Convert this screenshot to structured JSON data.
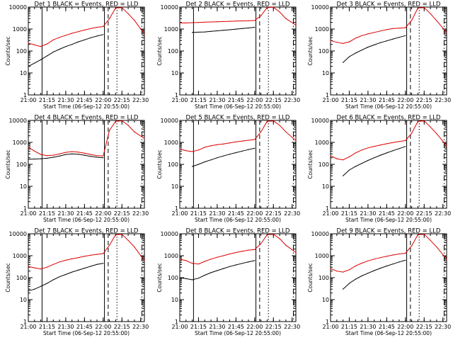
{
  "chart_data": {
    "type": "line",
    "yscale": "log",
    "ylim": [
      1,
      10000
    ],
    "xlim": [
      "21:00",
      "22:33"
    ],
    "ylabel": "Counts/sec",
    "xlabel": "Start Time (06-Sep-12 20:55:00)",
    "x_tick_labels": [
      "21:00",
      "21:15",
      "21:30",
      "21:45",
      "22:00",
      "22:15",
      "22:30"
    ],
    "y_tick_labels": [
      "1",
      "10",
      "100",
      "1000",
      "10000"
    ],
    "series_colors": {
      "events": "#000000",
      "lld": "#dd0000"
    },
    "panels": [
      {
        "title": "Det 1  BLACK = Events, RED = LLD",
        "markers": [
          {
            "t": "21:11",
            "style": "solid"
          },
          {
            "t": "22:01",
            "style": "solid"
          },
          {
            "t": "22:04",
            "style": "dashed"
          },
          {
            "t": "22:11",
            "style": "dotted"
          },
          {
            "t": "22:31",
            "style": "dashdot"
          }
        ],
        "series": [
          {
            "name": "Events",
            "color": "#000000",
            "x": [
              "21:00",
              "21:05",
              "21:10",
              "21:15",
              "21:20",
              "21:25",
              "21:30",
              "21:35",
              "21:40",
              "21:45",
              "21:50",
              "21:55",
              "22:00"
            ],
            "y": [
              20,
              28,
              40,
              60,
              90,
              120,
              160,
              200,
              260,
              320,
              400,
              480,
              560
            ]
          },
          {
            "name": "LLD",
            "color": "#dd0000",
            "x": [
              "21:00",
              "21:05",
              "21:10",
              "21:15",
              "21:20",
              "21:25",
              "21:30",
              "21:35",
              "21:40",
              "21:45",
              "21:50",
              "21:55",
              "22:00",
              "22:05",
              "22:10",
              "22:15",
              "22:20",
              "22:25",
              "22:33"
            ],
            "y": [
              230,
              190,
              160,
              210,
              320,
              420,
              520,
              640,
              760,
              900,
              1050,
              1200,
              1300,
              3000,
              9000,
              9500,
              5000,
              2500,
              600
            ]
          }
        ]
      },
      {
        "title": "Det 2  BLACK = Events, RED = LLD",
        "markers": [
          {
            "t": "21:11",
            "style": "solid"
          },
          {
            "t": "22:01",
            "style": "solid"
          },
          {
            "t": "22:04",
            "style": "dashed"
          },
          {
            "t": "22:11",
            "style": "dotted"
          },
          {
            "t": "22:31",
            "style": "dashdot"
          }
        ],
        "series": [
          {
            "name": "Events",
            "color": "#000000",
            "x": [
              "21:10",
              "21:15",
              "21:20",
              "21:25",
              "21:30",
              "21:35",
              "21:40",
              "21:45",
              "21:50",
              "21:55",
              "22:00"
            ],
            "y": [
              700,
              720,
              740,
              780,
              830,
              880,
              930,
              990,
              1050,
              1120,
              1200
            ]
          },
          {
            "name": "LLD",
            "color": "#dd0000",
            "x": [
              "21:00",
              "21:05",
              "21:10",
              "21:15",
              "21:20",
              "21:25",
              "21:30",
              "21:35",
              "21:40",
              "21:45",
              "21:50",
              "21:55",
              "22:00",
              "22:05",
              "22:10",
              "22:15",
              "22:20",
              "22:25",
              "22:33"
            ],
            "y": [
              1900,
              1900,
              1950,
              2000,
              2050,
              2100,
              2150,
              2200,
              2250,
              2300,
              2350,
              2400,
              2450,
              4000,
              9500,
              9800,
              6000,
              3000,
              1500
            ]
          }
        ]
      },
      {
        "title": "Det 3  BLACK = Events, RED = LLD",
        "markers": [
          {
            "t": "22:01",
            "style": "solid"
          },
          {
            "t": "22:04",
            "style": "dashed"
          },
          {
            "t": "22:11",
            "style": "dotted"
          },
          {
            "t": "22:31",
            "style": "dashdot"
          }
        ],
        "series": [
          {
            "name": "Events",
            "color": "#000000",
            "x": [
              "21:10",
              "21:15",
              "21:20",
              "21:25",
              "21:30",
              "21:35",
              "21:40",
              "21:45",
              "21:50",
              "21:55",
              "22:00"
            ],
            "y": [
              30,
              55,
              80,
              110,
              150,
              190,
              240,
              290,
              350,
              420,
              500
            ]
          },
          {
            "name": "LLD",
            "color": "#dd0000",
            "x": [
              "21:00",
              "21:05",
              "21:10",
              "21:15",
              "21:20",
              "21:25",
              "21:30",
              "21:35",
              "21:40",
              "21:45",
              "21:50",
              "21:55",
              "22:00",
              "22:05",
              "22:10",
              "22:15",
              "22:20",
              "22:25",
              "22:33"
            ],
            "y": [
              300,
              250,
              220,
              260,
              380,
              500,
              600,
              700,
              820,
              950,
              1050,
              1100,
              1150,
              2500,
              9000,
              9500,
              5000,
              2400,
              700
            ]
          }
        ]
      },
      {
        "title": "Det 4  BLACK = Events, RED = LLD",
        "markers": [
          {
            "t": "21:11",
            "style": "solid"
          },
          {
            "t": "22:01",
            "style": "solid"
          },
          {
            "t": "22:04",
            "style": "dashed"
          },
          {
            "t": "22:11",
            "style": "dotted"
          },
          {
            "t": "22:31",
            "style": "dashdot"
          }
        ],
        "series": [
          {
            "name": "Events",
            "color": "#000000",
            "x": [
              "21:00",
              "21:05",
              "21:10",
              "21:15",
              "21:20",
              "21:25",
              "21:30",
              "21:35",
              "21:40",
              "21:45",
              "21:50",
              "21:55",
              "22:00"
            ],
            "y": [
              170,
              175,
              180,
              190,
              210,
              240,
              280,
              300,
              290,
              260,
              230,
              210,
              200
            ]
          },
          {
            "name": "LLD",
            "color": "#dd0000",
            "x": [
              "21:00",
              "21:05",
              "21:10",
              "21:15",
              "21:20",
              "21:25",
              "21:30",
              "21:35",
              "21:40",
              "21:45",
              "21:50",
              "21:55",
              "22:00",
              "22:05",
              "22:10",
              "22:15",
              "22:20",
              "22:25",
              "22:33"
            ],
            "y": [
              600,
              400,
              280,
              250,
              260,
              300,
              350,
              380,
              360,
              320,
              280,
              250,
              240,
              3500,
              9000,
              9600,
              6000,
              3000,
              1500
            ]
          }
        ]
      },
      {
        "title": "Det 5  BLACK = Events, RED = LLD",
        "markers": [
          {
            "t": "21:11",
            "style": "solid"
          },
          {
            "t": "22:01",
            "style": "solid"
          },
          {
            "t": "22:04",
            "style": "dashed"
          },
          {
            "t": "22:11",
            "style": "dotted"
          },
          {
            "t": "22:31",
            "style": "dashdot"
          }
        ],
        "series": [
          {
            "name": "Events",
            "color": "#000000",
            "x": [
              "21:10",
              "21:15",
              "21:20",
              "21:25",
              "21:30",
              "21:35",
              "21:40",
              "21:45",
              "21:50",
              "21:55",
              "22:00"
            ],
            "y": [
              80,
              100,
              130,
              160,
              200,
              240,
              290,
              340,
              400,
              470,
              540
            ]
          },
          {
            "name": "LLD",
            "color": "#dd0000",
            "x": [
              "21:00",
              "21:05",
              "21:10",
              "21:15",
              "21:20",
              "21:25",
              "21:30",
              "21:35",
              "21:40",
              "21:45",
              "21:50",
              "21:55",
              "22:00",
              "22:05",
              "22:10",
              "22:15",
              "22:20",
              "22:25",
              "22:33"
            ],
            "y": [
              500,
              420,
              380,
              450,
              600,
              700,
              780,
              850,
              950,
              1050,
              1150,
              1250,
              1350,
              3000,
              9000,
              9500,
              6000,
              3000,
              1200
            ]
          }
        ]
      },
      {
        "title": "Det 6  BLACK = Events, RED = LLD",
        "markers": [
          {
            "t": "22:01",
            "style": "solid"
          },
          {
            "t": "22:04",
            "style": "dashed"
          },
          {
            "t": "22:11",
            "style": "dotted"
          },
          {
            "t": "22:31",
            "style": "dashdot"
          }
        ],
        "series": [
          {
            "name": "Events",
            "color": "#000000",
            "x": [
              "21:10",
              "21:15",
              "21:20",
              "21:25",
              "21:30",
              "21:35",
              "21:40",
              "21:45",
              "21:50",
              "21:55",
              "22:00"
            ],
            "y": [
              30,
              55,
              80,
              110,
              150,
              200,
              260,
              330,
              420,
              520,
              650
            ]
          },
          {
            "name": "LLD",
            "color": "#dd0000",
            "x": [
              "21:00",
              "21:05",
              "21:10",
              "21:15",
              "21:20",
              "21:25",
              "21:30",
              "21:35",
              "21:40",
              "21:45",
              "21:50",
              "21:55",
              "22:00",
              "22:05",
              "22:10",
              "22:15",
              "22:20",
              "22:25",
              "22:33"
            ],
            "y": [
              250,
              180,
              160,
              220,
              330,
              450,
              560,
              660,
              760,
              870,
              980,
              1100,
              1200,
              2600,
              9000,
              9500,
              5000,
              2500,
              700
            ]
          }
        ]
      },
      {
        "title": "Det 7  BLACK = Events, RED = LLD",
        "markers": [
          {
            "t": "21:11",
            "style": "solid"
          },
          {
            "t": "22:01",
            "style": "solid"
          },
          {
            "t": "22:04",
            "style": "dashed"
          },
          {
            "t": "22:11",
            "style": "dotted"
          },
          {
            "t": "22:31",
            "style": "dashdot"
          }
        ],
        "series": [
          {
            "name": "Events",
            "color": "#000000",
            "x": [
              "21:00",
              "21:05",
              "21:10",
              "21:15",
              "21:20",
              "21:25",
              "21:30",
              "21:35",
              "21:40",
              "21:45",
              "21:50",
              "21:55",
              "22:00"
            ],
            "y": [
              25,
              30,
              40,
              55,
              80,
              110,
              140,
              180,
              220,
              270,
              330,
              400,
              450
            ]
          },
          {
            "name": "LLD",
            "color": "#dd0000",
            "x": [
              "21:00",
              "21:05",
              "21:10",
              "21:15",
              "21:20",
              "21:25",
              "21:30",
              "21:35",
              "21:40",
              "21:45",
              "21:50",
              "21:55",
              "22:00",
              "22:05",
              "22:10",
              "22:15",
              "22:20",
              "22:25",
              "22:33"
            ],
            "y": [
              320,
              280,
              250,
              300,
              400,
              520,
              620,
              720,
              820,
              950,
              1050,
              1150,
              1250,
              3000,
              9000,
              9500,
              5000,
              2500,
              600
            ]
          }
        ]
      },
      {
        "title": "Det 8  BLACK = Events, RED = LLD",
        "markers": [
          {
            "t": "21:11",
            "style": "solid"
          },
          {
            "t": "22:01",
            "style": "solid"
          },
          {
            "t": "22:04",
            "style": "dashed"
          },
          {
            "t": "22:11",
            "style": "dotted"
          },
          {
            "t": "22:31",
            "style": "dashdot"
          }
        ],
        "series": [
          {
            "name": "Events",
            "color": "#000000",
            "x": [
              "21:00",
              "21:05",
              "21:10",
              "21:15",
              "21:20",
              "21:25",
              "21:30",
              "21:35",
              "21:40",
              "21:45",
              "21:50",
              "21:55",
              "22:00"
            ],
            "y": [
              100,
              90,
              80,
              95,
              130,
              170,
              210,
              260,
              320,
              380,
              450,
              520,
              600
            ]
          },
          {
            "name": "LLD",
            "color": "#dd0000",
            "x": [
              "21:00",
              "21:05",
              "21:10",
              "21:15",
              "21:20",
              "21:25",
              "21:30",
              "21:35",
              "21:40",
              "21:45",
              "21:50",
              "21:55",
              "22:00",
              "22:05",
              "22:10",
              "22:15",
              "22:20",
              "22:25",
              "22:33"
            ],
            "y": [
              700,
              600,
              450,
              420,
              550,
              700,
              850,
              1000,
              1200,
              1400,
              1600,
              1800,
              1900,
              3500,
              9000,
              9500,
              6000,
              3000,
              1400
            ]
          }
        ]
      },
      {
        "title": "Det 9  BLACK = Events, RED = LLD",
        "markers": [
          {
            "t": "22:01",
            "style": "solid"
          },
          {
            "t": "22:04",
            "style": "dashed"
          },
          {
            "t": "22:11",
            "style": "dotted"
          },
          {
            "t": "22:31",
            "style": "dashdot"
          }
        ],
        "series": [
          {
            "name": "Events",
            "color": "#000000",
            "x": [
              "21:10",
              "21:15",
              "21:20",
              "21:25",
              "21:30",
              "21:35",
              "21:40",
              "21:45",
              "21:50",
              "21:55",
              "22:00"
            ],
            "y": [
              30,
              55,
              85,
              120,
              160,
              210,
              270,
              340,
              420,
              520,
              620
            ]
          },
          {
            "name": "LLD",
            "color": "#dd0000",
            "x": [
              "21:00",
              "21:05",
              "21:10",
              "21:15",
              "21:20",
              "21:25",
              "21:30",
              "21:35",
              "21:40",
              "21:45",
              "21:50",
              "21:55",
              "22:00",
              "22:05",
              "22:10",
              "22:15",
              "22:20",
              "22:25",
              "22:33"
            ],
            "y": [
              260,
              200,
              180,
              230,
              340,
              460,
              580,
              700,
              820,
              950,
              1080,
              1200,
              1300,
              2800,
              9000,
              9500,
              5000,
              2500,
              700
            ]
          }
        ]
      }
    ]
  }
}
